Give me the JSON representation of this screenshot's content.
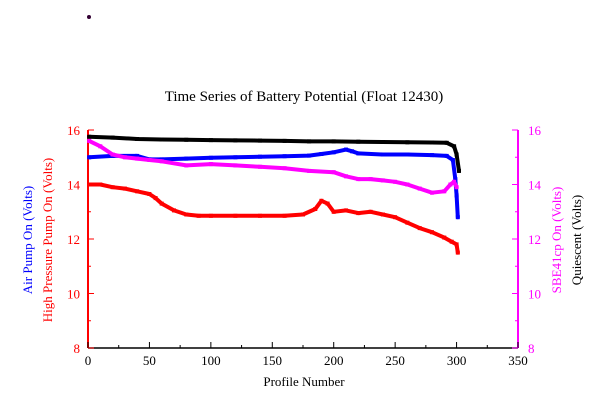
{
  "chart_data": {
    "type": "line",
    "title": "Time Series of Battery Potential (Float 12430)",
    "xlabel": "Profile Number",
    "xlim": [
      0,
      350
    ],
    "x_ticks": [
      "0",
      "50",
      "100",
      "150",
      "200",
      "250",
      "300",
      "350"
    ],
    "ylim_left": [
      8,
      16
    ],
    "y_ticks_left": [
      "8",
      "10",
      "12",
      "14",
      "16"
    ],
    "ylim_right": [
      8,
      16
    ],
    "y_ticks_right": [
      "8",
      "10",
      "12",
      "14",
      "16"
    ],
    "ylabels_left": [
      {
        "text": "Air Pump On (Volts)",
        "color": "#0000ff"
      },
      {
        "text": "High Pressure Pump On (Volts)",
        "color": "#ff0000"
      }
    ],
    "ylabels_right": [
      {
        "text": "SBE41cp On (Volts)",
        "color": "#ff00ff"
      },
      {
        "text": "Quiescent (Volts)",
        "color": "#000000"
      }
    ],
    "axis_colors": {
      "left": "#ff0000",
      "right": "#ff00ff",
      "bottom": "#000000"
    },
    "grid": false,
    "series": [
      {
        "color": "#000000",
        "points": [
          [
            1,
            15.75
          ],
          [
            20,
            15.72
          ],
          [
            40,
            15.67
          ],
          [
            60,
            15.65
          ],
          [
            80,
            15.64
          ],
          [
            100,
            15.63
          ],
          [
            120,
            15.62
          ],
          [
            140,
            15.61
          ],
          [
            160,
            15.6
          ],
          [
            180,
            15.58
          ],
          [
            200,
            15.58
          ],
          [
            220,
            15.57
          ],
          [
            240,
            15.56
          ],
          [
            260,
            15.55
          ],
          [
            280,
            15.54
          ],
          [
            292,
            15.53
          ],
          [
            298,
            15.4
          ],
          [
            300,
            15.1
          ],
          [
            302,
            14.5
          ]
        ]
      },
      {
        "color": "#0000ff",
        "points": [
          [
            1,
            15.0
          ],
          [
            20,
            15.05
          ],
          [
            40,
            15.05
          ],
          [
            50,
            14.92
          ],
          [
            60,
            14.92
          ],
          [
            80,
            14.95
          ],
          [
            100,
            14.98
          ],
          [
            120,
            15.0
          ],
          [
            140,
            15.02
          ],
          [
            160,
            15.04
          ],
          [
            180,
            15.06
          ],
          [
            190,
            15.12
          ],
          [
            200,
            15.18
          ],
          [
            210,
            15.28
          ],
          [
            215,
            15.22
          ],
          [
            220,
            15.14
          ],
          [
            240,
            15.1
          ],
          [
            260,
            15.1
          ],
          [
            280,
            15.08
          ],
          [
            292,
            15.05
          ],
          [
            297,
            14.9
          ],
          [
            299,
            14.2
          ],
          [
            300,
            13.6
          ],
          [
            301,
            12.8
          ]
        ]
      },
      {
        "color": "#ff00ff",
        "points": [
          [
            1,
            15.6
          ],
          [
            10,
            15.4
          ],
          [
            20,
            15.1
          ],
          [
            30,
            15.0
          ],
          [
            40,
            14.95
          ],
          [
            50,
            14.9
          ],
          [
            60,
            14.85
          ],
          [
            80,
            14.7
          ],
          [
            100,
            14.75
          ],
          [
            120,
            14.7
          ],
          [
            140,
            14.65
          ],
          [
            160,
            14.6
          ],
          [
            180,
            14.5
          ],
          [
            200,
            14.45
          ],
          [
            210,
            14.3
          ],
          [
            220,
            14.2
          ],
          [
            230,
            14.2
          ],
          [
            240,
            14.15
          ],
          [
            250,
            14.1
          ],
          [
            260,
            14.0
          ],
          [
            270,
            13.85
          ],
          [
            280,
            13.7
          ],
          [
            290,
            13.75
          ],
          [
            295,
            14.0
          ],
          [
            298,
            14.1
          ],
          [
            300,
            13.9
          ]
        ]
      },
      {
        "color": "#ff0000",
        "points": [
          [
            1,
            14.0
          ],
          [
            10,
            14.0
          ],
          [
            20,
            13.9
          ],
          [
            30,
            13.85
          ],
          [
            40,
            13.75
          ],
          [
            50,
            13.65
          ],
          [
            55,
            13.5
          ],
          [
            60,
            13.3
          ],
          [
            70,
            13.05
          ],
          [
            80,
            12.9
          ],
          [
            90,
            12.85
          ],
          [
            100,
            12.85
          ],
          [
            120,
            12.85
          ],
          [
            140,
            12.85
          ],
          [
            160,
            12.85
          ],
          [
            175,
            12.9
          ],
          [
            185,
            13.1
          ],
          [
            190,
            13.4
          ],
          [
            195,
            13.3
          ],
          [
            200,
            13.0
          ],
          [
            210,
            13.05
          ],
          [
            220,
            12.95
          ],
          [
            230,
            13.0
          ],
          [
            240,
            12.9
          ],
          [
            250,
            12.8
          ],
          [
            260,
            12.6
          ],
          [
            270,
            12.4
          ],
          [
            280,
            12.25
          ],
          [
            290,
            12.05
          ],
          [
            296,
            11.9
          ],
          [
            300,
            11.8
          ],
          [
            301,
            11.5
          ]
        ]
      }
    ]
  }
}
